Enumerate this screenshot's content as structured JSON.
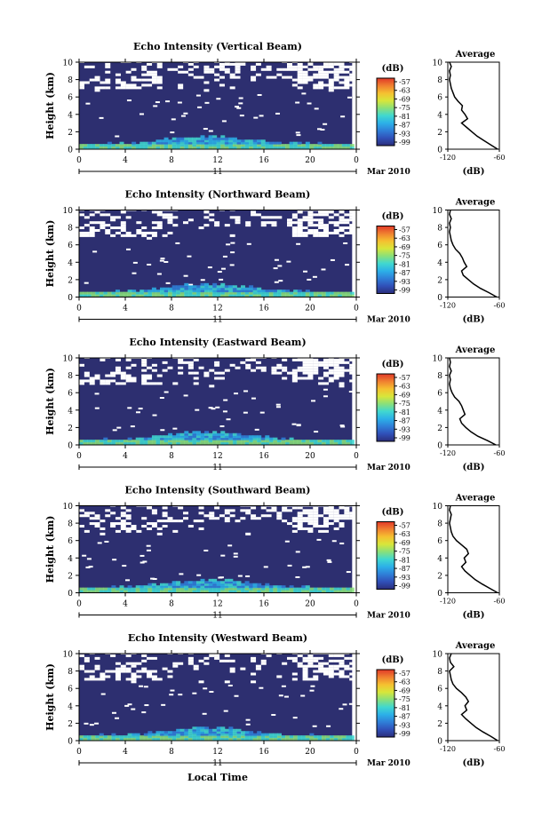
{
  "figure": {
    "x_axis_title": "Local Time",
    "colors": {
      "background_echo": "#2d2f70",
      "no_data": "#ffffff",
      "colorbar": [
        "#2b2d7a",
        "#3050b8",
        "#2f7fd8",
        "#2cb0e8",
        "#40d8d0",
        "#8ae07a",
        "#d8e63a",
        "#f5c030",
        "#f08030",
        "#e03828"
      ]
    }
  },
  "chart_data": [
    {
      "type": "heatmap",
      "title": "Echo Intensity (Vertical Beam)",
      "ylabel": "Height (km)",
      "ylim": [
        0,
        10
      ],
      "yticks": [
        "0",
        "2",
        "4",
        "6",
        "8",
        "10"
      ],
      "xlim": [
        0,
        24
      ],
      "xticks": [
        "0",
        "4",
        "8",
        "12",
        "16",
        "20",
        "0"
      ],
      "date_day": "11",
      "date_label": "Mar 2010",
      "colorbar": {
        "unit": "(dB)",
        "labels": [
          "-57",
          "-63",
          "-69",
          "-75",
          "-81",
          "-87",
          "-93",
          "-99"
        ]
      },
      "average": {
        "title": "Average",
        "xlabel": "(dB)",
        "xticks": [
          "-120",
          "-60"
        ],
        "xlim": [
          -120,
          -60
        ],
        "yticks": [
          "0",
          "2",
          "4",
          "6",
          "8",
          "10"
        ],
        "height_km": [
          0,
          0.5,
          1,
          1.5,
          2,
          2.5,
          3,
          3.5,
          4,
          4.5,
          5,
          5.5,
          6,
          6.5,
          7,
          7.5,
          8,
          8.5,
          9,
          9.5,
          10
        ],
        "db": [
          -62,
          -70,
          -78,
          -86,
          -92,
          -98,
          -104,
          -97,
          -100,
          -104,
          -103,
          -108,
          -112,
          -114,
          -116,
          -117,
          -118,
          -117,
          -118,
          -116,
          -118
        ]
      }
    },
    {
      "type": "heatmap",
      "title": "Echo Intensity (Northward Beam)",
      "ylabel": "Height (km)",
      "ylim": [
        0,
        10
      ],
      "yticks": [
        "0",
        "2",
        "4",
        "6",
        "8",
        "10"
      ],
      "xlim": [
        0,
        24
      ],
      "xticks": [
        "0",
        "4",
        "8",
        "12",
        "16",
        "20",
        "0"
      ],
      "date_day": "11",
      "date_label": "Mar 2010",
      "colorbar": {
        "unit": "(dB)",
        "labels": [
          "-57",
          "-63",
          "-69",
          "-75",
          "-81",
          "-87",
          "-93",
          "-99"
        ]
      },
      "average": {
        "title": "Average",
        "xlabel": "(dB)",
        "xticks": [
          "-120",
          "-60"
        ],
        "xlim": [
          -120,
          -60
        ],
        "yticks": [
          "0",
          "2",
          "4",
          "6",
          "8",
          "10"
        ],
        "height_km": [
          0,
          0.5,
          1,
          1.5,
          2,
          2.5,
          3,
          3.5,
          4,
          4.5,
          5,
          5.5,
          6,
          6.5,
          7,
          7.5,
          8,
          8.5,
          9,
          9.5,
          10
        ],
        "db": [
          -63,
          -72,
          -82,
          -90,
          -96,
          -102,
          -104,
          -98,
          -101,
          -103,
          -106,
          -111,
          -114,
          -116,
          -117,
          -118,
          -117,
          -118,
          -116,
          -118,
          -117
        ]
      }
    },
    {
      "type": "heatmap",
      "title": "Echo Intensity (Eastward Beam)",
      "ylabel": "Height (km)",
      "ylim": [
        0,
        10
      ],
      "yticks": [
        "0",
        "2",
        "4",
        "6",
        "8",
        "10"
      ],
      "xlim": [
        0,
        24
      ],
      "xticks": [
        "0",
        "4",
        "8",
        "12",
        "16",
        "20",
        "0"
      ],
      "date_day": "11",
      "date_label": "Mar 2010",
      "colorbar": {
        "unit": "(dB)",
        "labels": [
          "-57",
          "-63",
          "-69",
          "-75",
          "-81",
          "-87",
          "-93",
          "-99"
        ]
      },
      "average": {
        "title": "Average",
        "xlabel": "(dB)",
        "xticks": [
          "-120",
          "-60"
        ],
        "xlim": [
          -120,
          -60
        ],
        "yticks": [
          "0",
          "2",
          "4",
          "6",
          "8",
          "10"
        ],
        "height_km": [
          0,
          0.5,
          1,
          1.5,
          2,
          2.5,
          3,
          3.5,
          4,
          4.5,
          5,
          5.5,
          6,
          6.5,
          7,
          7.5,
          8,
          8.5,
          9,
          9.5,
          10
        ],
        "db": [
          -64,
          -74,
          -85,
          -93,
          -99,
          -104,
          -106,
          -100,
          -102,
          -104,
          -107,
          -112,
          -115,
          -117,
          -118,
          -117,
          -118,
          -116,
          -118,
          -117,
          -118
        ]
      }
    },
    {
      "type": "heatmap",
      "title": "Echo Intensity (Southward Beam)",
      "ylabel": "Height (km)",
      "ylim": [
        0,
        10
      ],
      "yticks": [
        "0",
        "2",
        "4",
        "6",
        "8",
        "10"
      ],
      "xlim": [
        0,
        24
      ],
      "xticks": [
        "0",
        "4",
        "8",
        "12",
        "16",
        "20",
        "0"
      ],
      "date_day": "11",
      "date_label": "Mar 2010",
      "colorbar": {
        "unit": "(dB)",
        "labels": [
          "-57",
          "-63",
          "-69",
          "-75",
          "-81",
          "-87",
          "-93",
          "-99"
        ]
      },
      "average": {
        "title": "Average",
        "xlabel": "(dB)",
        "xticks": [
          "-120",
          "-60"
        ],
        "xlim": [
          -120,
          -60
        ],
        "yticks": [
          "0",
          "2",
          "4",
          "6",
          "8",
          "10"
        ],
        "height_km": [
          0,
          0.5,
          1,
          1.5,
          2,
          2.5,
          3,
          3.5,
          4,
          4.5,
          5,
          5.5,
          6,
          6.5,
          7,
          7.5,
          8,
          8.5,
          9,
          9.5,
          10
        ],
        "db": [
          -62,
          -71,
          -80,
          -88,
          -94,
          -100,
          -104,
          -99,
          -101,
          -96,
          -98,
          -104,
          -110,
          -114,
          -116,
          -117,
          -118,
          -117,
          -116,
          -118,
          -117
        ]
      }
    },
    {
      "type": "heatmap",
      "title": "Echo Intensity (Westward Beam)",
      "ylabel": "Height (km)",
      "ylim": [
        0,
        10
      ],
      "yticks": [
        "0",
        "2",
        "4",
        "6",
        "8",
        "10"
      ],
      "xlim": [
        0,
        24
      ],
      "xticks": [
        "0",
        "4",
        "8",
        "12",
        "16",
        "20",
        "0"
      ],
      "date_day": "11",
      "date_label": "Mar 2010",
      "colorbar": {
        "unit": "(dB)",
        "labels": [
          "-57",
          "-63",
          "-69",
          "-75",
          "-81",
          "-87",
          "-93",
          "-99"
        ]
      },
      "average": {
        "title": "Average",
        "xlabel": "(dB)",
        "xticks": [
          "-120",
          "-60"
        ],
        "xlim": [
          -120,
          -60
        ],
        "yticks": [
          "0",
          "2",
          "4",
          "6",
          "8",
          "10"
        ],
        "height_km": [
          0,
          0.5,
          1,
          1.5,
          2,
          2.5,
          3,
          3.5,
          4,
          4.5,
          5,
          5.5,
          6,
          6.5,
          7,
          7.5,
          8,
          8.5,
          9,
          9.5,
          10
        ],
        "db": [
          -62,
          -70,
          -79,
          -87,
          -93,
          -99,
          -104,
          -98,
          -100,
          -96,
          -99,
          -104,
          -110,
          -114,
          -116,
          -117,
          -118,
          -113,
          -117,
          -118,
          -116
        ]
      }
    }
  ]
}
